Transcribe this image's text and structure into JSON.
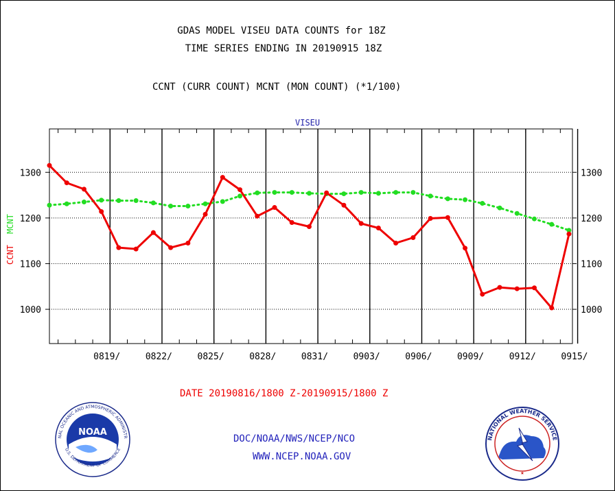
{
  "header": {
    "title_line1": "GDAS MODEL VISEU DATA COUNTS for 18Z",
    "title_line2": "TIME SERIES ENDING IN 20190915 18Z",
    "subtitle": "CCNT (CURR COUNT) MCNT (MON COUNT) (*1/100)",
    "station": "VISEU"
  },
  "footer": {
    "date_range": "DATE 20190816/1800 Z-20190915/1800 Z",
    "org": "DOC/NOAA/NWS/NCEP/NCO",
    "url": "WWW.NCEP.NOAA.GOV"
  },
  "logos": {
    "left_text": "NATIONAL OCEANIC AND ATMOSPHERIC ADMINISTRATION",
    "left_bottom_text": "U.S. DEPARTMENT OF COMMERCE",
    "left_center": "NOAA",
    "right_text": "NATIONAL WEATHER SERVICE"
  },
  "chart_data": {
    "type": "line",
    "title": "VISEU",
    "ylabel_ccnt": "CCNT",
    "ylabel_mcnt": "MCNT",
    "ylim": [
      925,
      1395
    ],
    "xlim": [
      0,
      30.2
    ],
    "yticks": [
      1000,
      1100,
      1200,
      1300
    ],
    "xticks": [
      {
        "pos": 3,
        "label": "0819/"
      },
      {
        "pos": 6,
        "label": "0822/"
      },
      {
        "pos": 9,
        "label": "0825/"
      },
      {
        "pos": 12,
        "label": "0828/"
      },
      {
        "pos": 15,
        "label": "0831/"
      },
      {
        "pos": 18,
        "label": "0903/"
      },
      {
        "pos": 21,
        "label": "0906/"
      },
      {
        "pos": 24,
        "label": "0909/"
      },
      {
        "pos": 27,
        "label": "0912/"
      },
      {
        "pos": 30,
        "label": "0915/"
      }
    ],
    "grid": true,
    "series": [
      {
        "name": "CCNT",
        "color": "#ee0000",
        "style": "solid",
        "values": [
          1315,
          1277,
          1263,
          1214,
          1135,
          1132,
          1168,
          1135,
          1145,
          1208,
          1289,
          1262,
          1204,
          1223,
          1190,
          1181,
          1255,
          1228,
          1188,
          1178,
          1145,
          1157,
          1199,
          1201,
          1134,
          1033,
          1048,
          1045,
          1047,
          1003,
          1165
        ]
      },
      {
        "name": "MCNT",
        "color": "#22dd22",
        "style": "dotted",
        "values": [
          1228,
          1231,
          1235,
          1239,
          1238,
          1238,
          1233,
          1226,
          1226,
          1231,
          1236,
          1248,
          1255,
          1256,
          1256,
          1254,
          1253,
          1253,
          1256,
          1254,
          1256,
          1256,
          1248,
          1242,
          1240,
          1232,
          1222,
          1210,
          1198,
          1186,
          1173
        ]
      }
    ]
  }
}
